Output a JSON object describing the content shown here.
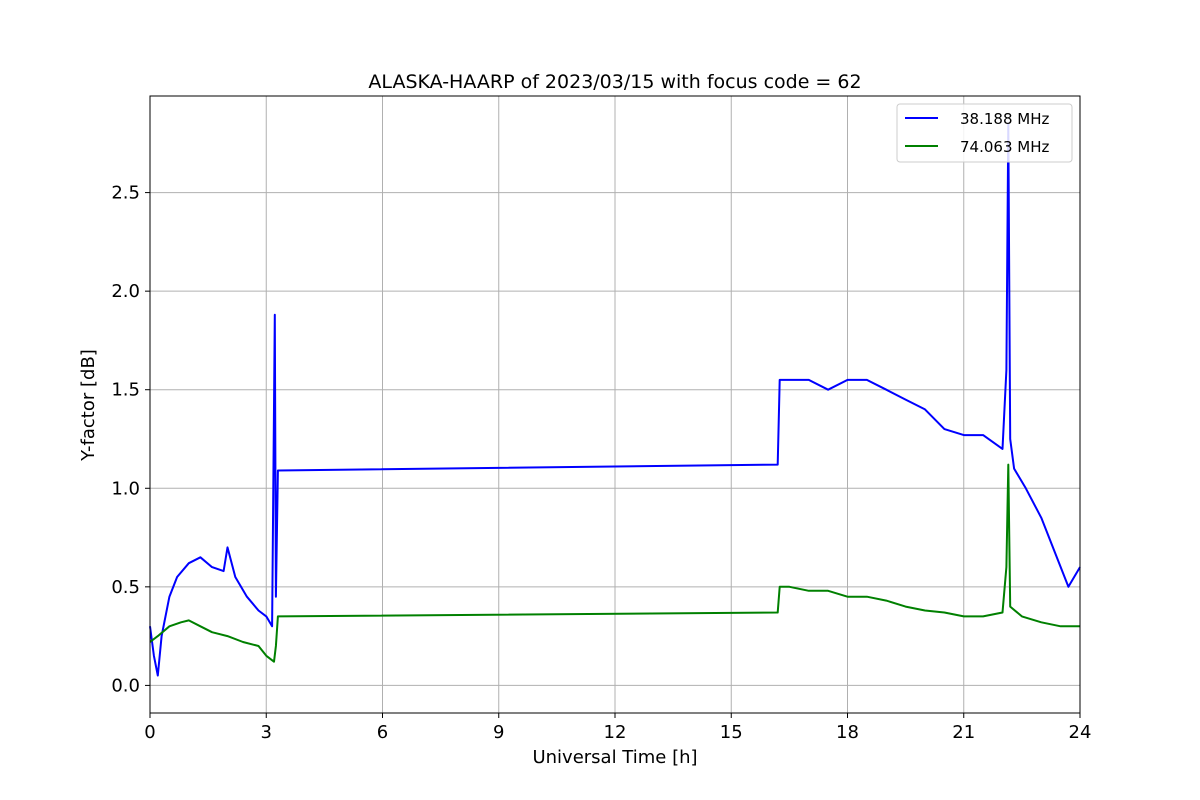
{
  "chart_data": {
    "type": "line",
    "title": "ALASKA-HAARP of 2023/03/15 with focus code = 62",
    "xlabel": "Universal Time [h]",
    "ylabel": "Y-factor [dB]",
    "xlim": [
      0,
      24
    ],
    "ylim": [
      -0.14,
      2.99
    ],
    "x_ticks": [
      0,
      3,
      6,
      9,
      12,
      15,
      18,
      21,
      24
    ],
    "y_ticks": [
      0.0,
      0.5,
      1.0,
      1.5,
      2.0,
      2.5
    ],
    "x_tick_labels": [
      "0",
      "3",
      "6",
      "9",
      "12",
      "15",
      "18",
      "21",
      "24"
    ],
    "y_tick_labels": [
      "0.0",
      "0.5",
      "1.0",
      "1.5",
      "2.0",
      "2.5"
    ],
    "grid": true,
    "legend_position": "top-right",
    "series": [
      {
        "name": "38.188 MHz",
        "color": "#0000ff",
        "x": [
          0.0,
          0.1,
          0.2,
          0.3,
          0.5,
          0.7,
          1.0,
          1.3,
          1.6,
          1.9,
          2.0,
          2.2,
          2.5,
          2.8,
          3.0,
          3.15,
          3.22,
          3.25,
          3.3,
          16.2,
          16.25,
          16.5,
          17.0,
          17.5,
          18.0,
          18.5,
          19.0,
          19.5,
          20.0,
          20.5,
          21.0,
          21.5,
          22.0,
          22.1,
          22.15,
          22.2,
          22.3,
          22.6,
          23.0,
          23.4,
          23.7,
          24.0
        ],
        "y": [
          0.3,
          0.15,
          0.05,
          0.25,
          0.45,
          0.55,
          0.62,
          0.65,
          0.6,
          0.58,
          0.7,
          0.55,
          0.45,
          0.38,
          0.35,
          0.3,
          1.88,
          0.45,
          1.09,
          1.12,
          1.55,
          1.55,
          1.55,
          1.5,
          1.55,
          1.55,
          1.5,
          1.45,
          1.4,
          1.3,
          1.27,
          1.27,
          1.2,
          1.6,
          2.85,
          1.25,
          1.1,
          1.0,
          0.85,
          0.65,
          0.5,
          0.6
        ]
      },
      {
        "name": "74.063 MHz",
        "color": "#008000",
        "x": [
          0.0,
          0.2,
          0.5,
          0.8,
          1.0,
          1.3,
          1.6,
          2.0,
          2.4,
          2.8,
          3.0,
          3.2,
          3.25,
          3.3,
          16.2,
          16.25,
          16.5,
          17.0,
          17.5,
          18.0,
          18.5,
          19.0,
          19.5,
          20.0,
          20.5,
          21.0,
          21.5,
          22.0,
          22.1,
          22.15,
          22.2,
          22.5,
          23.0,
          23.5,
          24.0
        ],
        "y": [
          0.22,
          0.25,
          0.3,
          0.32,
          0.33,
          0.3,
          0.27,
          0.25,
          0.22,
          0.2,
          0.15,
          0.12,
          0.2,
          0.35,
          0.37,
          0.5,
          0.5,
          0.48,
          0.48,
          0.45,
          0.45,
          0.43,
          0.4,
          0.38,
          0.37,
          0.35,
          0.35,
          0.37,
          0.6,
          1.12,
          0.4,
          0.35,
          0.32,
          0.3,
          0.3
        ]
      }
    ]
  }
}
